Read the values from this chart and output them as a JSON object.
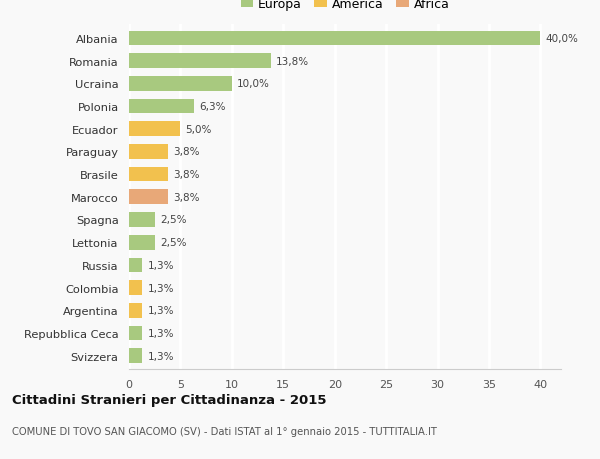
{
  "countries": [
    "Albania",
    "Romania",
    "Ucraina",
    "Polonia",
    "Ecuador",
    "Paraguay",
    "Brasile",
    "Marocco",
    "Spagna",
    "Lettonia",
    "Russia",
    "Colombia",
    "Argentina",
    "Repubblica Ceca",
    "Svizzera"
  ],
  "values": [
    40.0,
    13.8,
    10.0,
    6.3,
    5.0,
    3.8,
    3.8,
    3.8,
    2.5,
    2.5,
    1.3,
    1.3,
    1.3,
    1.3,
    1.3
  ],
  "labels": [
    "40,0%",
    "13,8%",
    "10,0%",
    "6,3%",
    "5,0%",
    "3,8%",
    "3,8%",
    "3,8%",
    "2,5%",
    "2,5%",
    "1,3%",
    "1,3%",
    "1,3%",
    "1,3%",
    "1,3%"
  ],
  "continent": [
    "Europa",
    "Europa",
    "Europa",
    "Europa",
    "America",
    "America",
    "America",
    "Africa",
    "Europa",
    "Europa",
    "Europa",
    "America",
    "America",
    "Europa",
    "Europa"
  ],
  "colors": {
    "Europa": "#a8c97f",
    "America": "#f2c14e",
    "Africa": "#e8a878"
  },
  "legend_colors": {
    "Europa": "#a8c97f",
    "America": "#f2c14e",
    "Africa": "#e8a878"
  },
  "title_main": "Cittadini Stranieri per Cittadinanza - 2015",
  "title_sub": "COMUNE DI TOVO SAN GIACOMO (SV) - Dati ISTAT al 1° gennaio 2015 - TUTTITALIA.IT",
  "xlim": [
    0,
    42
  ],
  "xticks": [
    0,
    5,
    10,
    15,
    20,
    25,
    30,
    35,
    40
  ],
  "background_color": "#f9f9f9",
  "grid_color": "#ffffff",
  "bar_height": 0.65
}
